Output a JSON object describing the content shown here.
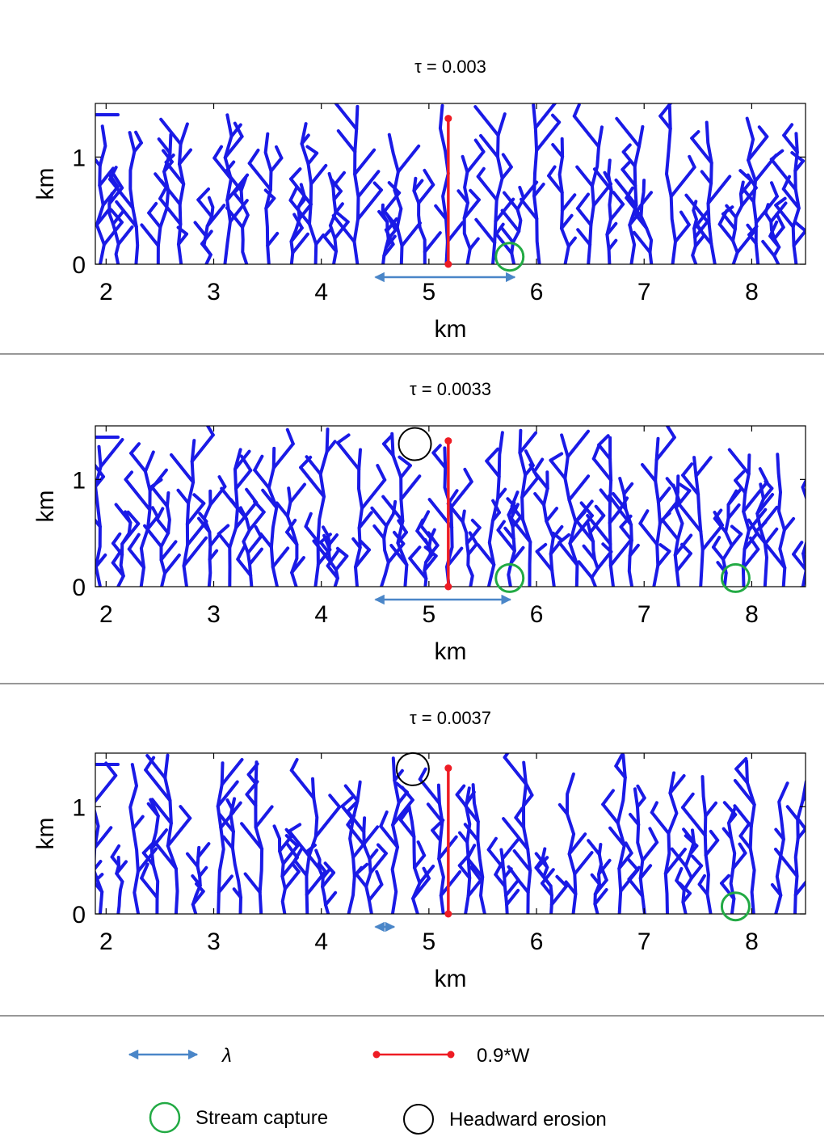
{
  "chart_data": [
    {
      "type": "line",
      "title": "τ = 0.003",
      "xlabel": "km",
      "ylabel": "km",
      "xlim": [
        1.9,
        8.5
      ],
      "ylim": [
        0,
        1.5
      ],
      "xticks": [
        2,
        3,
        4,
        5,
        6,
        7,
        8
      ],
      "yticks": [
        0,
        1
      ],
      "width_marker": {
        "x": 5.18,
        "y0": 0,
        "y1": 1.36
      },
      "lambda_arrow": {
        "x0": 4.48,
        "x1": 5.82
      },
      "stream_capture": [
        {
          "x": 5.75,
          "y": 0.07
        }
      ],
      "headward_erosion": []
    },
    {
      "type": "line",
      "title": "τ = 0.0033",
      "xlabel": "km",
      "ylabel": "km",
      "xlim": [
        1.9,
        8.5
      ],
      "ylim": [
        0,
        1.5
      ],
      "xticks": [
        2,
        3,
        4,
        5,
        6,
        7,
        8
      ],
      "yticks": [
        0,
        1
      ],
      "width_marker": {
        "x": 5.18,
        "y0": 0,
        "y1": 1.36
      },
      "lambda_arrow": {
        "x0": 4.48,
        "x1": 5.78
      },
      "stream_capture": [
        {
          "x": 5.75,
          "y": 0.08
        },
        {
          "x": 7.85,
          "y": 0.08
        }
      ],
      "headward_erosion": [
        {
          "x": 4.87,
          "y": 1.33
        }
      ]
    },
    {
      "type": "line",
      "title": "τ = 0.0037",
      "xlabel": "km",
      "ylabel": "km",
      "xlim": [
        1.9,
        8.5
      ],
      "ylim": [
        0,
        1.5
      ],
      "xticks": [
        2,
        3,
        4,
        5,
        6,
        7,
        8
      ],
      "yticks": [
        0,
        1
      ],
      "width_marker": {
        "x": 5.18,
        "y0": 0,
        "y1": 1.36
      },
      "lambda_arrow": {
        "x0": 4.48,
        "x1": 4.7
      },
      "stream_capture": [
        {
          "x": 7.85,
          "y": 0.07
        }
      ],
      "headward_erosion": [
        {
          "x": 4.85,
          "y": 1.35
        }
      ]
    }
  ],
  "legend": {
    "lambda_label": "λ",
    "width_label": "0.9*W",
    "capture_label": "Stream capture",
    "headward_label": "Headward erosion"
  },
  "colors": {
    "river": "#1a1ae6",
    "width": "#ee1c24",
    "lambda": "#4a86c8",
    "capture": "#22aa44",
    "headward": "#000000",
    "separator": "#777777"
  }
}
